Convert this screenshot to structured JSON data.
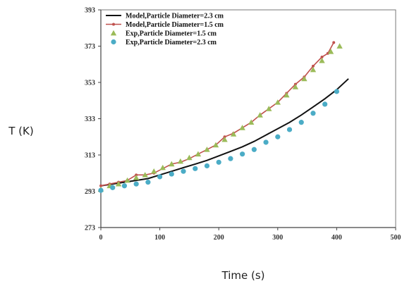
{
  "chart_data": {
    "type": "line",
    "title": "",
    "xlabel": "Time (s)",
    "ylabel": "T (K)",
    "xlim": [
      0,
      500
    ],
    "ylim": [
      273,
      393
    ],
    "xticks": [
      0,
      100,
      200,
      300,
      400,
      500
    ],
    "yticks": [
      273,
      293,
      313,
      333,
      353,
      373,
      393
    ],
    "grid": false,
    "legend_position": "top-left",
    "series": [
      {
        "name": "Model,Particle Diameter=2.3 cm",
        "style": "line",
        "color": "#111111",
        "x": [
          0,
          20,
          40,
          60,
          80,
          100,
          120,
          140,
          160,
          180,
          200,
          220,
          240,
          260,
          280,
          300,
          320,
          340,
          360,
          380,
          400,
          420
        ],
        "y": [
          296,
          297,
          298,
          299,
          300,
          302,
          304,
          306,
          308,
          310,
          312.5,
          315,
          317.5,
          320.5,
          324,
          327.5,
          331,
          335,
          339.5,
          344,
          349,
          355
        ]
      },
      {
        "name": "Model,Particle Diameter=1.5 cm",
        "style": "line-marker",
        "color": "#c0504d",
        "x": [
          0,
          15,
          30,
          45,
          60,
          75,
          90,
          105,
          120,
          135,
          150,
          165,
          180,
          195,
          210,
          225,
          240,
          255,
          270,
          285,
          300,
          315,
          330,
          345,
          360,
          375,
          385,
          395
        ],
        "y": [
          296,
          297,
          298,
          299,
          302,
          302,
          303,
          305.5,
          308,
          309,
          311,
          313.5,
          316,
          318.5,
          323,
          325,
          328,
          331,
          335,
          338.5,
          342,
          347,
          352,
          356,
          362,
          367,
          369,
          375
        ]
      },
      {
        "name": "Exp,Particle Diameter=1.5 cm",
        "style": "marker",
        "marker": "triangle",
        "color": "#9bbb59",
        "x": [
          0,
          15,
          30,
          45,
          60,
          75,
          90,
          105,
          120,
          135,
          150,
          165,
          180,
          195,
          210,
          225,
          240,
          255,
          270,
          285,
          300,
          315,
          330,
          345,
          360,
          375,
          390,
          405
        ],
        "y": [
          294,
          296,
          297,
          299,
          300.5,
          302,
          304,
          306,
          308,
          309.5,
          311.5,
          313.5,
          316,
          318.5,
          321.5,
          324.5,
          328,
          331,
          335,
          338.5,
          342,
          346,
          350.5,
          355,
          360,
          365,
          370,
          373
        ]
      },
      {
        "name": "Exp,Particle Diameter=2.3 cm",
        "style": "marker",
        "marker": "circle",
        "color": "#4bacc6",
        "x": [
          0,
          20,
          40,
          60,
          80,
          100,
          120,
          140,
          160,
          180,
          200,
          220,
          240,
          260,
          280,
          300,
          320,
          340,
          360,
          380,
          400
        ],
        "y": [
          293.5,
          295,
          296,
          297,
          298,
          301,
          302.5,
          304,
          305.5,
          307,
          309,
          311,
          313.5,
          316,
          320,
          323,
          327,
          331,
          336,
          341,
          348
        ]
      }
    ]
  }
}
